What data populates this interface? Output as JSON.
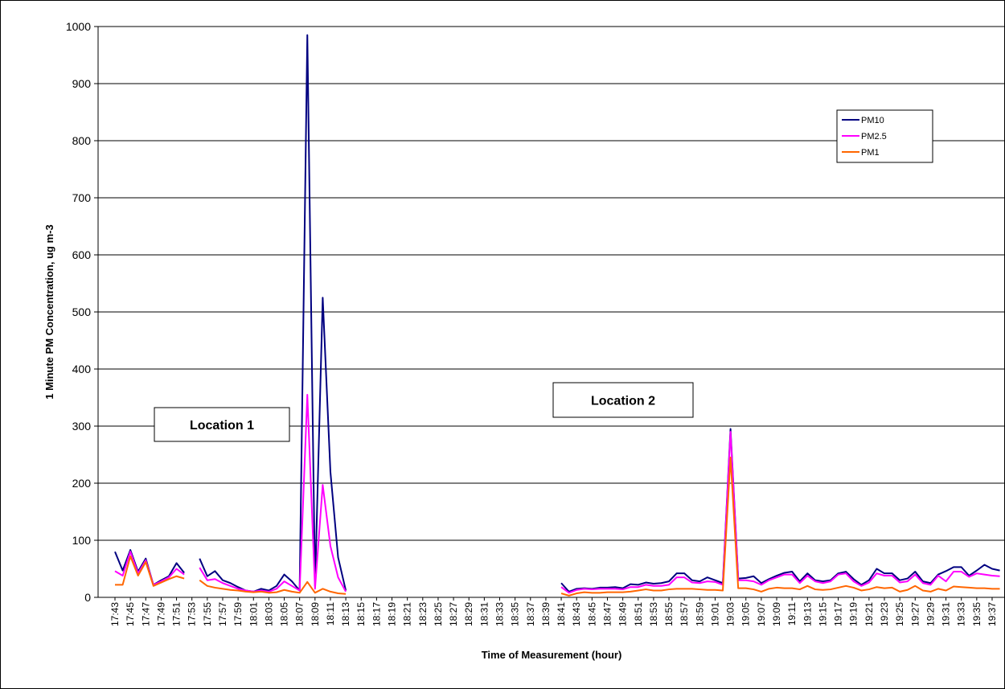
{
  "chart_data": {
    "type": "line",
    "y_label": "1 Minute PM Concentration, ug m-3",
    "x_label": "Time of Measurement (hour)",
    "annotations": [
      "Location 1",
      "Location 2"
    ],
    "ylim": [
      0,
      1000
    ],
    "yticks": [
      0,
      100,
      200,
      300,
      400,
      500,
      600,
      700,
      800,
      900,
      1000
    ],
    "grid": true,
    "legend": "upper-right",
    "categories": [
      "17:43",
      null,
      "17:45",
      null,
      "17:47",
      null,
      "17:49",
      null,
      "17:51",
      null,
      "17:53",
      null,
      "17:55",
      null,
      "17:57",
      null,
      "17:59",
      null,
      "18:01",
      null,
      "18:03",
      null,
      "18:05",
      null,
      "18:07",
      null,
      "18:09",
      null,
      "18:11",
      null,
      "18:13",
      null,
      "18:15",
      null,
      "18:17",
      null,
      "18:19",
      null,
      "18:21",
      null,
      "18:23",
      null,
      "18:25",
      null,
      "18:27",
      null,
      "18:29",
      null,
      "18:31",
      null,
      "18:33",
      null,
      "18:35",
      null,
      "18:37",
      null,
      "18:39",
      null,
      "18:41",
      null,
      "18:43",
      null,
      "18:45",
      null,
      "18:47",
      null,
      "18:49",
      null,
      "18:51",
      null,
      "18:53",
      null,
      "18:55",
      null,
      "18:57",
      null,
      "18:59",
      null,
      "19:01",
      null,
      "19:03",
      null,
      "19:05",
      null,
      "19:07",
      null,
      "19:09",
      null,
      "19:11",
      null,
      "19:13",
      null,
      "19:15",
      null,
      "19:17",
      null,
      "19:19",
      null,
      "19:21",
      null,
      "19:23",
      null,
      "19:25",
      null,
      "19:27",
      null,
      "19:29",
      null,
      "19:31",
      null,
      "19:33",
      null,
      "19:35",
      null,
      "19:37",
      null
    ],
    "series": [
      {
        "name": "PM10",
        "color": "#000080",
        "values": [
          80,
          47,
          83,
          45,
          68,
          22,
          30,
          37,
          60,
          43,
          null,
          68,
          37,
          46,
          30,
          25,
          18,
          12,
          10,
          15,
          12,
          20,
          40,
          28,
          12,
          985,
          20,
          525,
          220,
          70,
          12,
          null,
          null,
          null,
          null,
          null,
          null,
          null,
          null,
          null,
          null,
          null,
          null,
          null,
          null,
          null,
          null,
          null,
          null,
          null,
          null,
          null,
          null,
          null,
          null,
          null,
          null,
          null,
          25,
          10,
          15,
          16,
          15,
          17,
          17,
          18,
          16,
          23,
          22,
          26,
          24,
          25,
          28,
          42,
          42,
          30,
          28,
          35,
          30,
          25,
          295,
          33,
          34,
          37,
          25,
          32,
          38,
          43,
          45,
          28,
          42,
          30,
          28,
          30,
          42,
          45,
          32,
          22,
          30,
          50,
          42,
          42,
          30,
          33,
          45,
          28,
          25,
          40,
          46,
          53,
          53,
          38,
          47,
          57,
          50,
          47
        ]
      },
      {
        "name": "PM2.5",
        "color": "#ff00ff",
        "values": [
          46,
          38,
          80,
          42,
          65,
          22,
          28,
          35,
          50,
          40,
          null,
          52,
          30,
          32,
          25,
          20,
          15,
          12,
          10,
          12,
          10,
          15,
          28,
          20,
          12,
          355,
          15,
          197,
          90,
          35,
          10,
          null,
          null,
          null,
          null,
          null,
          null,
          null,
          null,
          null,
          null,
          null,
          null,
          null,
          null,
          null,
          null,
          null,
          null,
          null,
          null,
          null,
          null,
          null,
          null,
          null,
          null,
          null,
          18,
          8,
          13,
          15,
          14,
          15,
          15,
          15,
          14,
          18,
          18,
          22,
          20,
          20,
          22,
          35,
          35,
          26,
          25,
          28,
          27,
          22,
          290,
          30,
          30,
          28,
          22,
          30,
          35,
          40,
          40,
          25,
          38,
          28,
          25,
          28,
          40,
          42,
          28,
          20,
          26,
          42,
          38,
          38,
          26,
          28,
          40,
          25,
          22,
          38,
          28,
          45,
          45,
          36,
          42,
          40,
          38,
          37
        ]
      },
      {
        "name": "PM1",
        "color": "#ff6600",
        "values": [
          22,
          22,
          72,
          38,
          62,
          20,
          26,
          32,
          37,
          33,
          null,
          30,
          20,
          17,
          15,
          13,
          12,
          10,
          9,
          10,
          8,
          9,
          13,
          10,
          8,
          27,
          8,
          15,
          10,
          7,
          6,
          null,
          null,
          null,
          null,
          null,
          null,
          null,
          null,
          null,
          null,
          null,
          null,
          null,
          null,
          null,
          null,
          null,
          null,
          null,
          null,
          null,
          null,
          null,
          null,
          null,
          null,
          null,
          7,
          3,
          7,
          9,
          8,
          8,
          9,
          9,
          9,
          10,
          12,
          14,
          12,
          12,
          14,
          15,
          15,
          15,
          14,
          13,
          13,
          12,
          245,
          16,
          16,
          14,
          10,
          15,
          17,
          16,
          16,
          14,
          20,
          14,
          13,
          14,
          17,
          20,
          17,
          12,
          14,
          18,
          16,
          17,
          10,
          13,
          20,
          12,
          10,
          15,
          12,
          19,
          18,
          17,
          16,
          16,
          15,
          15
        ]
      }
    ]
  }
}
